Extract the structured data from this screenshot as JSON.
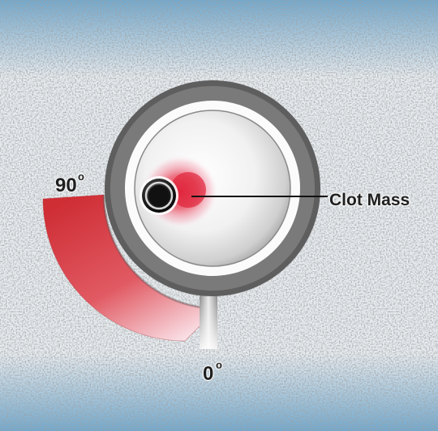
{
  "labels": {
    "clot": "Clot Mass",
    "angle_top": "90",
    "angle_bottom": "0",
    "degree_mark": "o"
  },
  "colors": {
    "background_blue": "#7fb3d6",
    "stucco": "#e6e6e6",
    "outer_ring": "#6b6b6b",
    "arc_red": "#d9383e",
    "clot_red": "#e02a3a",
    "catheter": "#1a1a1a"
  },
  "icons": {
    "vessel": "vessel-cross-section-icon",
    "catheter": "catheter-tip-icon",
    "clot": "clot-mass-icon",
    "arc": "angle-arc-icon"
  }
}
